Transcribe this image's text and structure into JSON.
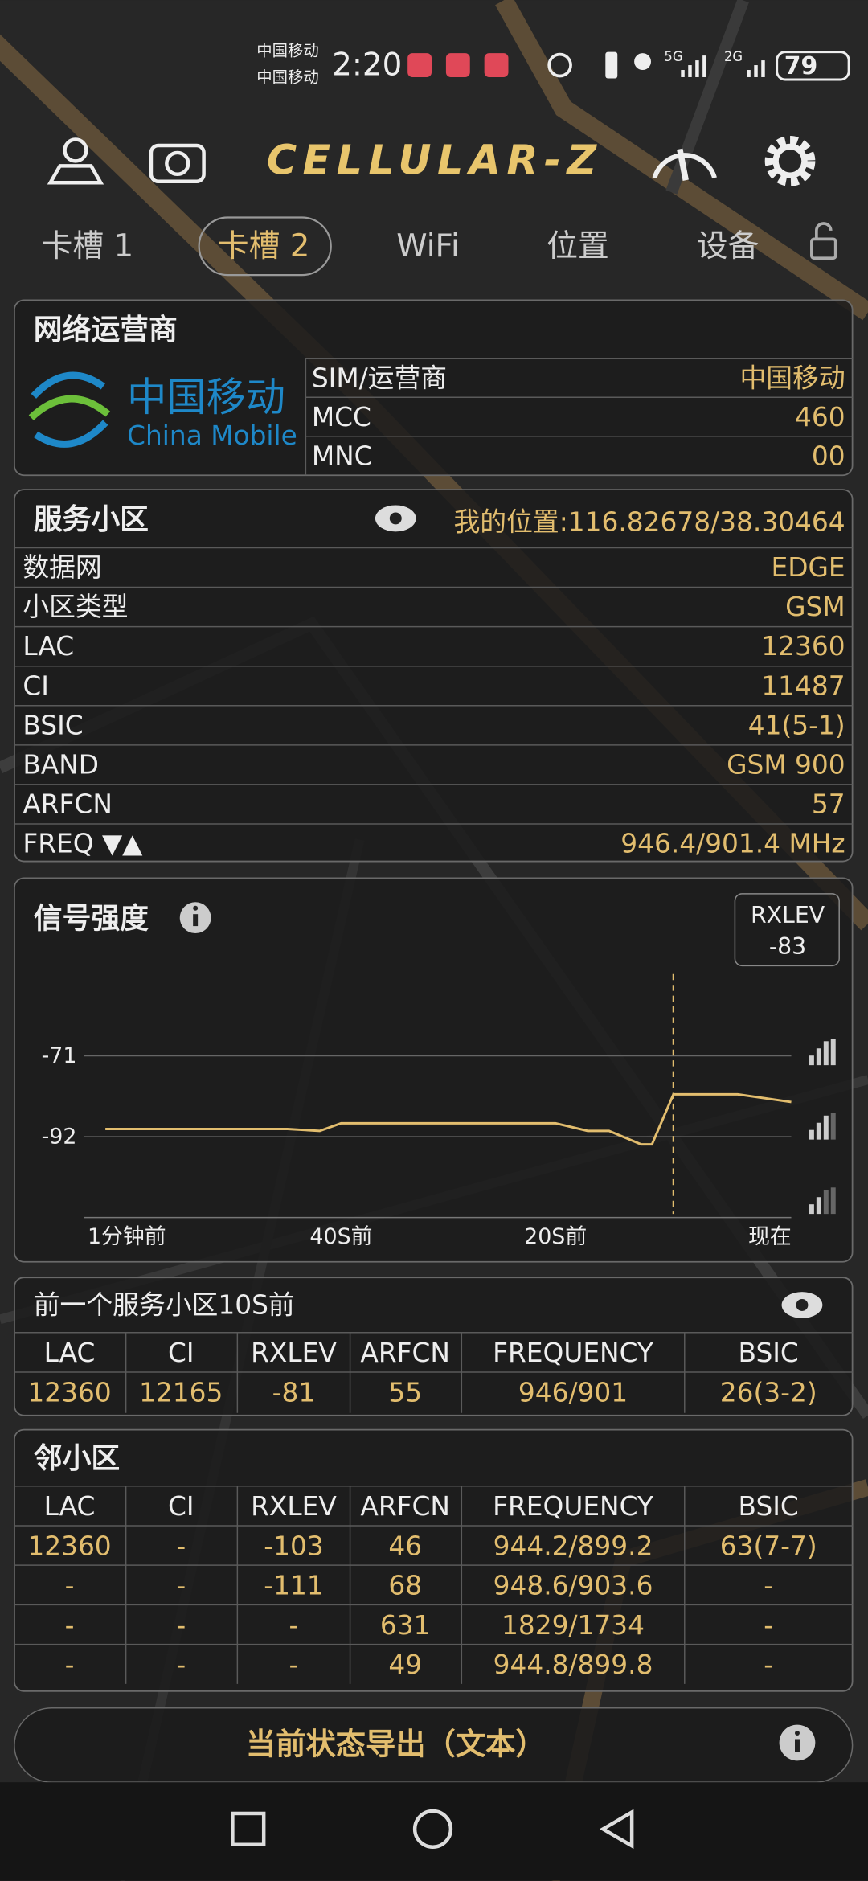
{
  "status_bar": {
    "carrier_1": "中国移动",
    "carrier_2": "中国移动",
    "time": "2:20",
    "network_1": "5G",
    "network_2": "2G",
    "battery": "79"
  },
  "header": {
    "title": "CELLULAR-Z"
  },
  "tabs": [
    "卡槽 1",
    "卡槽 2",
    "WiFi",
    "位置",
    "设备"
  ],
  "active_tab": 1,
  "operator": {
    "title": "网络运营商",
    "logo_cn": "中国移动",
    "logo_en": "China Mobile",
    "rows": [
      [
        "SIM/运营商",
        "中国移动"
      ],
      [
        "MCC",
        "460"
      ],
      [
        "MNC",
        "00"
      ]
    ]
  },
  "serving": {
    "title": "服务小区",
    "location": "我的位置:116.82678/38.30464",
    "rows": [
      [
        "数据网",
        "EDGE"
      ],
      [
        "小区类型",
        "GSM"
      ],
      [
        "LAC",
        "12360"
      ],
      [
        "CI",
        "11487"
      ],
      [
        "BSIC",
        "41(5-1)"
      ],
      [
        "BAND",
        "GSM 900"
      ],
      [
        "ARFCN",
        "57"
      ],
      [
        "FREQ ▼▲",
        "946.4/901.4 MHz"
      ]
    ]
  },
  "signal": {
    "type": "line",
    "title": "信号强度",
    "badge_label": "RXLEV",
    "badge_value": "-83",
    "color": "#e2bd6e",
    "ylim": [
      -113,
      -46
    ],
    "yticks": [
      -71,
      -92
    ],
    "xlim": [
      -64,
      2
    ],
    "xticks": [
      {
        "value": -60,
        "label": "1分钟前"
      },
      {
        "value": -40,
        "label": "40S前"
      },
      {
        "value": -20,
        "label": "20S前"
      },
      {
        "value": 0,
        "label": "现在"
      }
    ],
    "x": [
      -62,
      -45,
      -42,
      -40,
      -20,
      -17,
      -15,
      -12,
      -11,
      -9,
      -3,
      2
    ],
    "values": [
      -90,
      -90,
      -90.5,
      -88.5,
      -88.5,
      -90.5,
      -90.5,
      -94,
      -94,
      -81,
      -81,
      -83
    ],
    "cursor_x": -9
  },
  "previous": {
    "title": "前一个服务小区10S前",
    "headers": [
      "LAC",
      "CI",
      "RXLEV",
      "ARFCN",
      "FREQUENCY",
      "BSIC"
    ],
    "rows": [
      [
        "12360",
        "12165",
        "-81",
        "55",
        "946/901",
        "26(3-2)"
      ]
    ]
  },
  "neighbors": {
    "title": "邻小区",
    "headers": [
      "LAC",
      "CI",
      "RXLEV",
      "ARFCN",
      "FREQUENCY",
      "BSIC"
    ],
    "rows": [
      [
        "12360",
        "-",
        "-103",
        "46",
        "944.2/899.2",
        "63(7-7)"
      ],
      [
        "-",
        "-",
        "-111",
        "68",
        "948.6/903.6",
        "-"
      ],
      [
        "-",
        "-",
        "-",
        "631",
        "1829/1734",
        "-"
      ],
      [
        "-",
        "-",
        "-",
        "49",
        "944.8/899.8",
        "-"
      ]
    ]
  },
  "export": {
    "label": "当前状态导出（文本）"
  }
}
